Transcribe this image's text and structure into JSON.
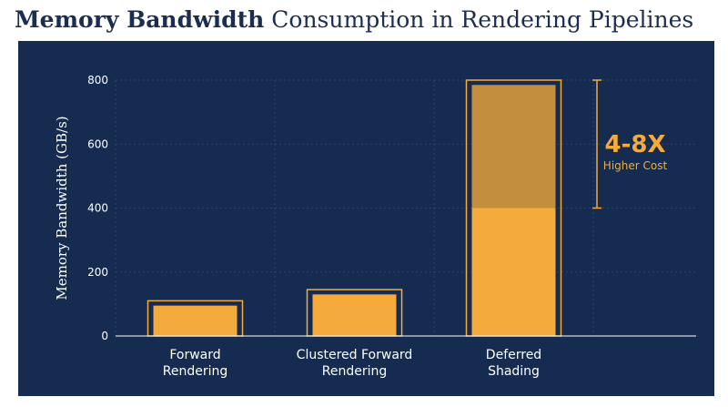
{
  "header": {
    "title_bold": "Memory Bandwidth",
    "title_rest": " Consumption in Rendering Pipelines"
  },
  "chart_data": {
    "type": "bar",
    "categories": [
      [
        "Forward",
        "Rendering"
      ],
      [
        "Clustered Forward",
        "Rendering"
      ],
      [
        "Deferred",
        "Shading"
      ]
    ],
    "values": [
      95,
      130,
      785
    ],
    "range_high": [
      110,
      145,
      800
    ],
    "stack_base": [
      null,
      null,
      400
    ],
    "xlabel": "",
    "ylabel": "Memory Bandwidth (GB/s)",
    "ylim": [
      0,
      800
    ],
    "yticks": [
      0,
      200,
      400,
      600,
      800
    ],
    "grid": true,
    "annotation": {
      "headline": "4-8X",
      "subline": "Higher Cost",
      "range": [
        400,
        800
      ]
    },
    "colors": {
      "bar": "#f4ab3c",
      "bar_upper": "#c38f3c",
      "outline": "#f4ab3c",
      "grid": "#2f4668",
      "background": "#152b4f",
      "text": "#ffffff"
    }
  }
}
